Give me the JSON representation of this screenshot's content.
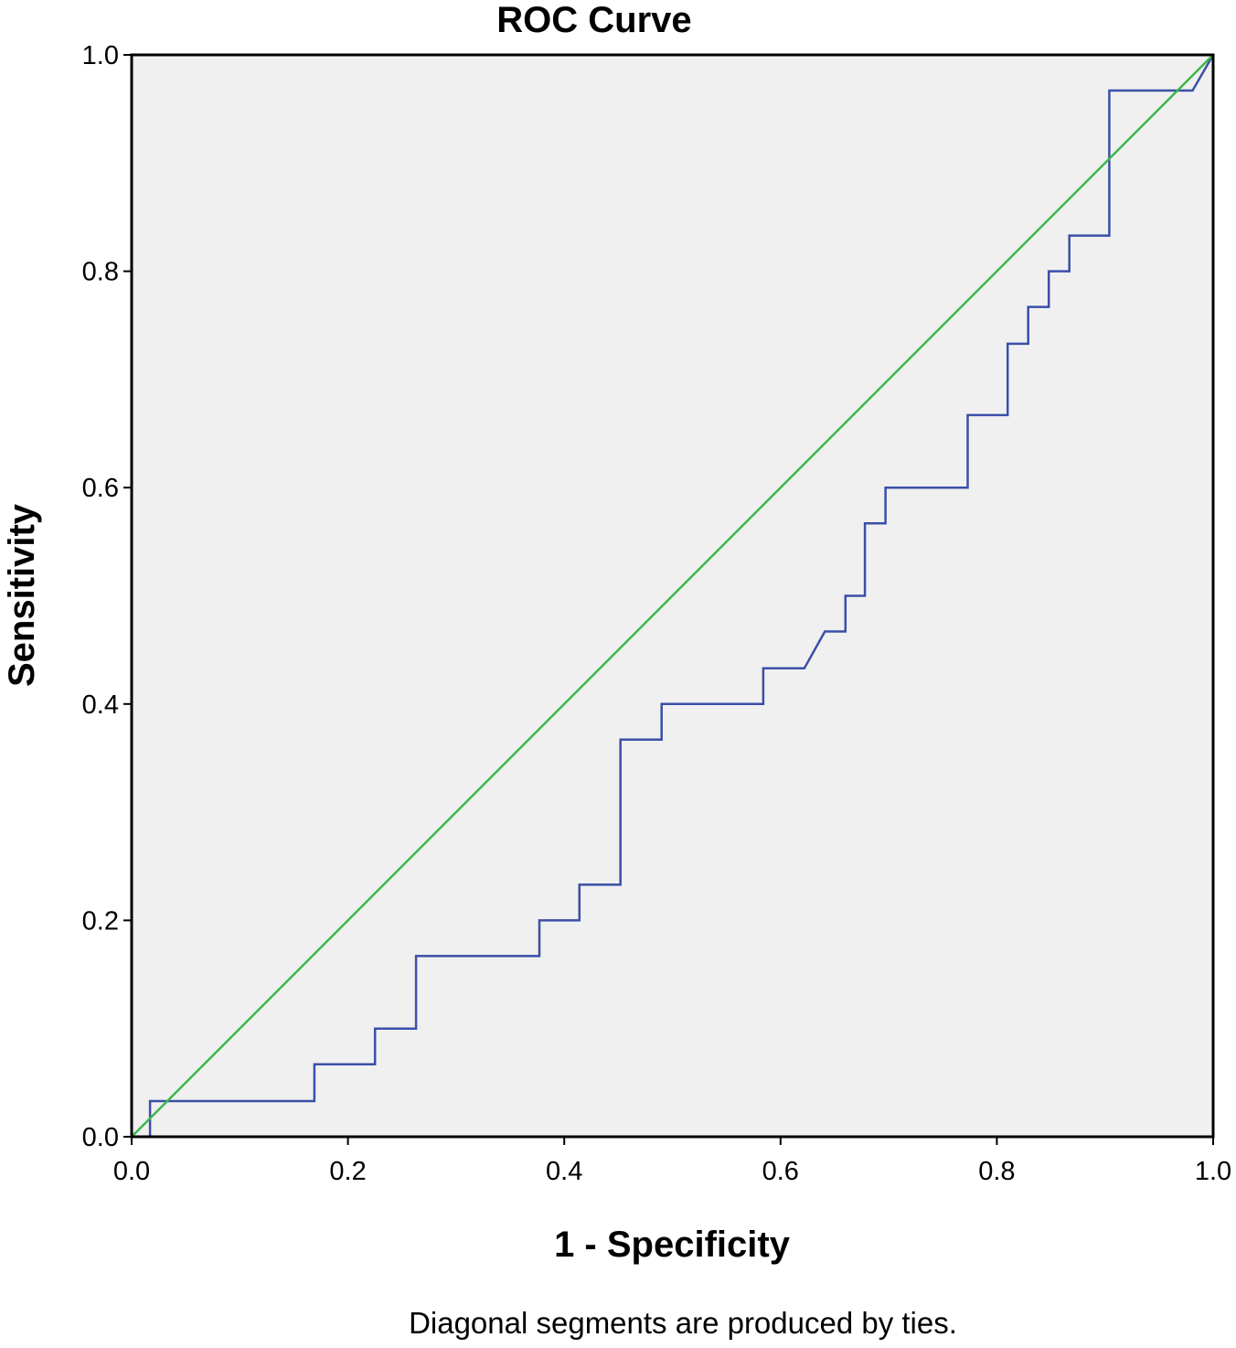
{
  "chart_data": {
    "type": "line",
    "title": "ROC Curve",
    "xlabel": "1 - Specificity",
    "ylabel": "Sensitivity",
    "footnote": "Diagonal segments are produced by ties.",
    "xlim": [
      0.0,
      1.0
    ],
    "ylim": [
      0.0,
      1.0
    ],
    "xticks": [
      "0.0",
      "0.2",
      "0.4",
      "0.6",
      "0.8",
      "1.0"
    ],
    "yticks": [
      "0.0",
      "0.2",
      "0.4",
      "0.6",
      "0.8",
      "1.0"
    ],
    "grid": false,
    "plot_background": "#f0f0f0",
    "series": [
      {
        "color": "#3b4fa8",
        "x": [
          0.0,
          0.017,
          0.017,
          0.169,
          0.169,
          0.225,
          0.225,
          0.263,
          0.263,
          0.377,
          0.377,
          0.414,
          0.414,
          0.452,
          0.452,
          0.49,
          0.49,
          0.584,
          0.584,
          0.622,
          0.641,
          0.66,
          0.66,
          0.678,
          0.678,
          0.697,
          0.697,
          0.773,
          0.773,
          0.81,
          0.81,
          0.829,
          0.829,
          0.848,
          0.848,
          0.867,
          0.867,
          0.904,
          0.904,
          0.981,
          1.0
        ],
        "y": [
          0.0,
          0.0,
          0.033,
          0.033,
          0.067,
          0.067,
          0.1,
          0.1,
          0.167,
          0.167,
          0.2,
          0.2,
          0.233,
          0.233,
          0.367,
          0.367,
          0.4,
          0.4,
          0.433,
          0.433,
          0.467,
          0.467,
          0.5,
          0.5,
          0.567,
          0.567,
          0.6,
          0.6,
          0.667,
          0.667,
          0.733,
          0.733,
          0.767,
          0.767,
          0.8,
          0.8,
          0.833,
          0.833,
          0.967,
          0.967,
          1.0
        ]
      },
      {
        "color": "#3cb84a",
        "x": [
          0.0,
          1.0
        ],
        "y": [
          0.0,
          1.0
        ]
      }
    ]
  }
}
